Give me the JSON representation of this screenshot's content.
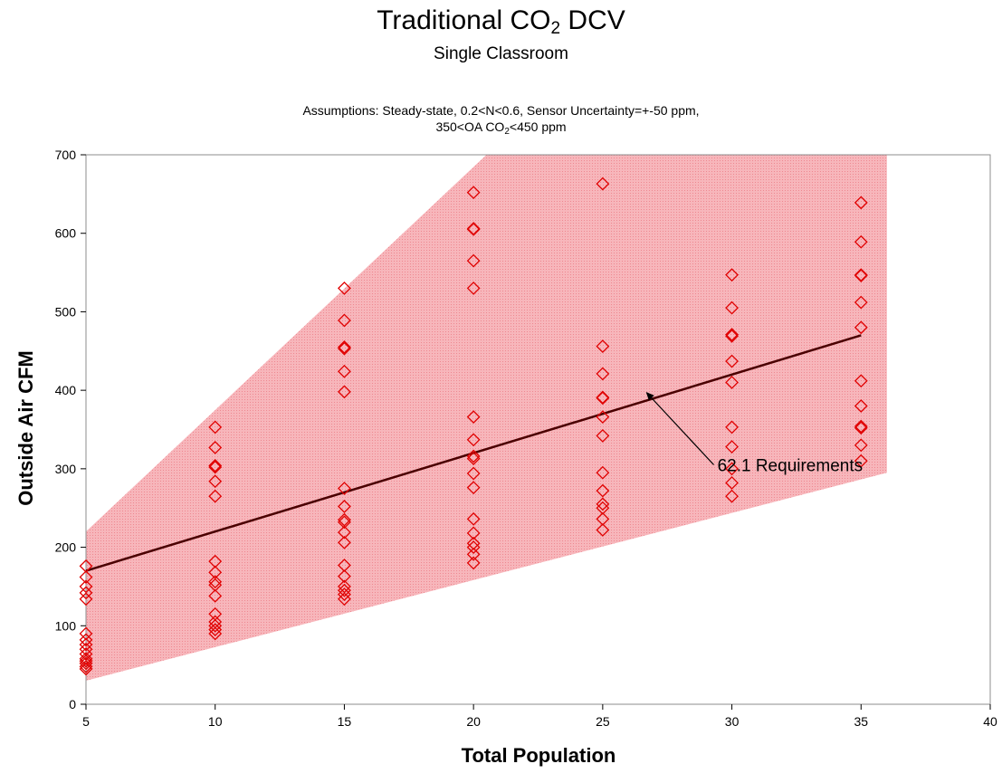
{
  "title": {
    "main": "Traditional CO",
    "main_sub": "2",
    "main_suffix": " DCV",
    "subtitle": "Single Classroom",
    "assumptions_line1": "Assumptions: Steady-state, 0.2<N<0.6, Sensor Uncertainty=+-50 ppm,",
    "assumptions_line2_pre": "350<OA CO",
    "assumptions_line2_sub": "2",
    "assumptions_line2_post": "<450 ppm"
  },
  "colors": {
    "band_fill": "#f4a3aa",
    "marker": "#e00000",
    "line": "#4a0000"
  },
  "chart_data": {
    "type": "scatter",
    "xlabel": "Total Population",
    "ylabel": "Outside Air CFM",
    "xlim": [
      5,
      40
    ],
    "ylim": [
      0,
      700
    ],
    "x_ticks": [
      5,
      10,
      15,
      20,
      25,
      30,
      35,
      40
    ],
    "y_ticks": [
      0,
      100,
      200,
      300,
      400,
      500,
      600,
      700
    ],
    "grid": false,
    "legend": "none",
    "uncertainty_band": {
      "upper": [
        [
          5,
          220
        ],
        [
          36,
          1180
        ]
      ],
      "lower": [
        [
          5,
          30
        ],
        [
          36,
          295
        ]
      ],
      "x_end": 36
    },
    "requirement_line": {
      "label": "62.1 Requirements",
      "points": [
        [
          5,
          170
        ],
        [
          35,
          470
        ]
      ],
      "arrow_from": [
        29.3,
        305
      ],
      "arrow_to": [
        26.7,
        397
      ]
    },
    "series": [
      {
        "x": 5,
        "values": [
          176,
          162,
          150,
          142,
          134,
          90,
          82,
          76,
          70,
          64,
          58,
          55,
          52,
          48,
          45
        ]
      },
      {
        "x": 10,
        "values": [
          353,
          327,
          304,
          302,
          284,
          265,
          182,
          168,
          156,
          152,
          138,
          115,
          105,
          100,
          95,
          90
        ]
      },
      {
        "x": 15,
        "values": [
          530,
          489,
          455,
          453,
          424,
          398,
          275,
          252,
          235,
          232,
          219,
          206,
          177,
          163,
          150,
          145,
          140,
          134
        ]
      },
      {
        "x": 20,
        "values": [
          652,
          606,
          605,
          565,
          530,
          366,
          337,
          316,
          313,
          294,
          276,
          236,
          218,
          205,
          200,
          191,
          180
        ]
      },
      {
        "x": 25,
        "values": [
          663,
          456,
          421,
          391,
          390,
          366,
          342,
          295,
          272,
          255,
          250,
          236,
          222
        ]
      },
      {
        "x": 30,
        "values": [
          547,
          505,
          471,
          469,
          437,
          410,
          353,
          328,
          300,
          282,
          265
        ]
      },
      {
        "x": 35,
        "values": [
          639,
          589,
          547,
          546,
          512,
          480,
          412,
          380,
          354,
          352,
          330,
          310
        ]
      }
    ]
  }
}
